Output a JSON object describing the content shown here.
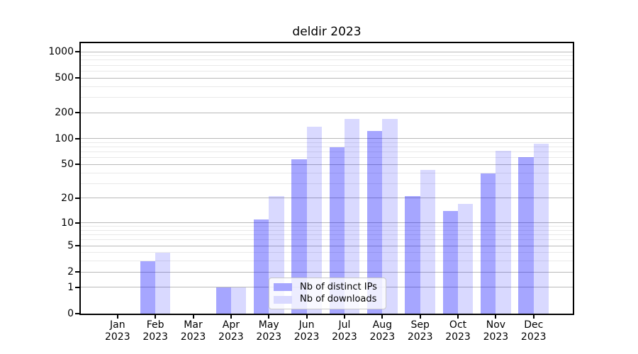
{
  "title": "deldir 2023",
  "chart_data": {
    "type": "bar",
    "title": "deldir 2023",
    "categories": [
      "Jan",
      "Feb",
      "Mar",
      "Apr",
      "May",
      "Jun",
      "Jul",
      "Aug",
      "Sep",
      "Oct",
      "Nov",
      "Dec"
    ],
    "x_year_label": "2023",
    "series": [
      {
        "name": "Nb of distinct IPs",
        "color": "#a6a6ff",
        "rgba": "rgba(0,0,255,0.35)",
        "values": [
          0,
          3,
          0,
          1,
          11,
          58,
          79,
          123,
          21,
          14,
          39,
          61
        ]
      },
      {
        "name": "Nb of downloads",
        "color": "#d9d9ff",
        "rgba": "rgba(0,0,255,0.15)",
        "values": [
          0,
          4,
          0,
          1,
          21,
          137,
          168,
          170,
          43,
          17,
          73,
          88
        ]
      }
    ],
    "y_axis": {
      "scale": "log10(1+v)",
      "major_ticks": [
        0,
        1,
        2,
        5,
        10,
        20,
        50,
        100,
        200,
        500,
        1000
      ],
      "ylim": [
        0,
        1270
      ]
    },
    "grid": {
      "visible": "both",
      "major_color": "#b9b9b9",
      "minor_color": "#e9e9e9"
    },
    "legend": {
      "position": "lower-center-inset",
      "items": [
        "Nb of distinct IPs",
        "Nb of downloads"
      ]
    }
  }
}
